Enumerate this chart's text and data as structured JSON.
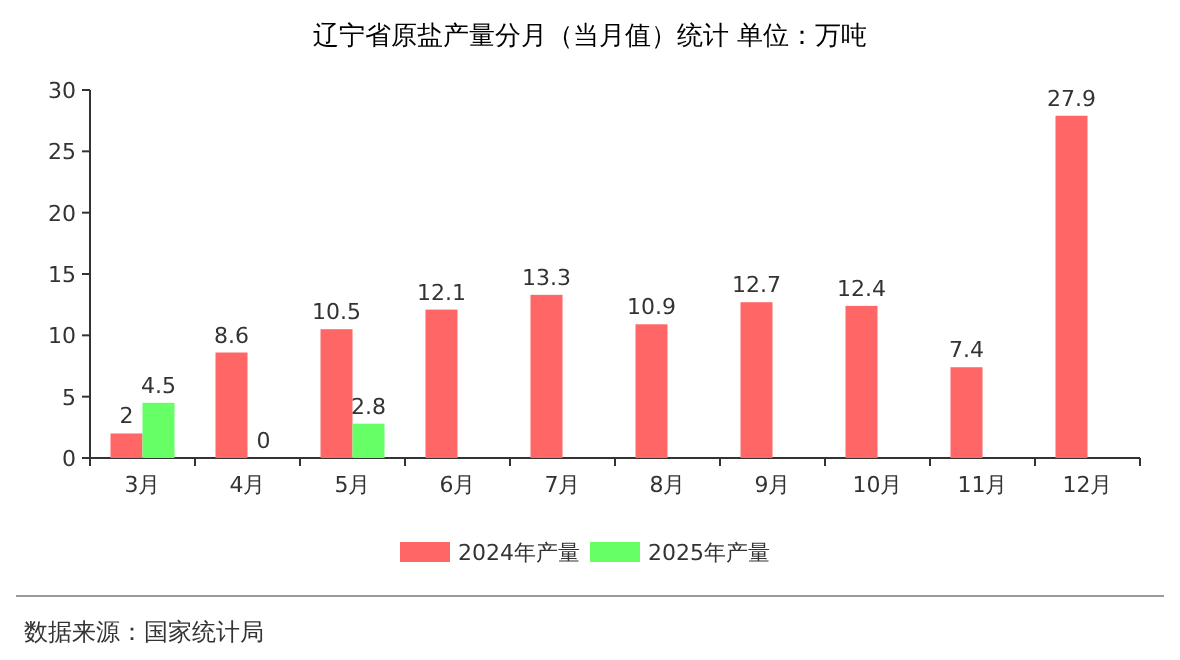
{
  "chart_data": {
    "type": "bar",
    "title": "辽宁省原盐产量分月（当月值）统计  单位：万吨",
    "categories": [
      "3月",
      "4月",
      "5月",
      "6月",
      "7月",
      "8月",
      "9月",
      "10月",
      "11月",
      "12月"
    ],
    "series": [
      {
        "name": "2024年产量",
        "color": "#ff6666",
        "values": [
          2,
          8.6,
          10.5,
          12.1,
          13.3,
          10.9,
          12.7,
          12.4,
          7.4,
          27.9
        ]
      },
      {
        "name": "2025年产量",
        "color": "#66ff66",
        "values": [
          4.5,
          0,
          2.8,
          null,
          null,
          null,
          null,
          null,
          null,
          null
        ]
      }
    ],
    "ylim": [
      0,
      30
    ],
    "yticks": [
      0,
      5,
      10,
      15,
      20,
      25,
      30
    ],
    "grid": false,
    "legend": "bottom",
    "data_labels": true,
    "annotations": [
      "数据来源：国家统计局"
    ]
  }
}
